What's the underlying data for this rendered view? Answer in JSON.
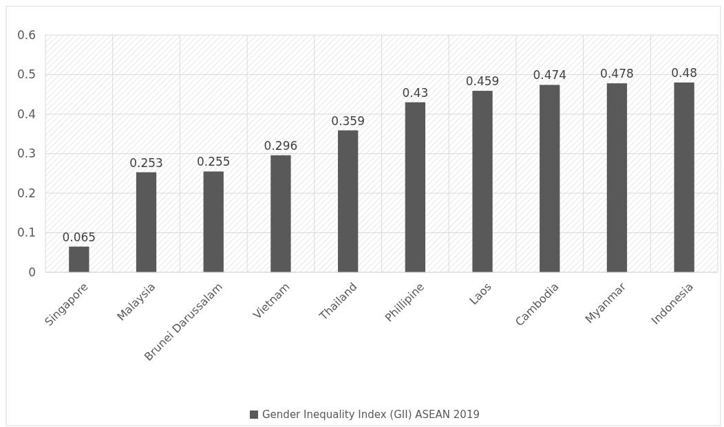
{
  "chart_data": {
    "type": "bar",
    "categories": [
      "Singapore",
      "Malaysia",
      "Brunei Darussalam",
      "Vietnam",
      "Thailand",
      "Phillipine",
      "Laos",
      "Cambodia",
      "Myanmar",
      "Indonesia"
    ],
    "series": [
      {
        "name": "Gender Inequality Index (GII) ASEAN 2019",
        "color": "#595959",
        "values": [
          0.065,
          0.253,
          0.255,
          0.296,
          0.359,
          0.43,
          0.459,
          0.474,
          0.478,
          0.48
        ]
      }
    ],
    "ylim": [
      0,
      0.6
    ],
    "yticks": [
      0,
      0.1,
      0.2,
      0.3,
      0.4,
      0.5,
      0.6
    ],
    "grid": true,
    "legend": "bottom",
    "data_labels": true
  }
}
